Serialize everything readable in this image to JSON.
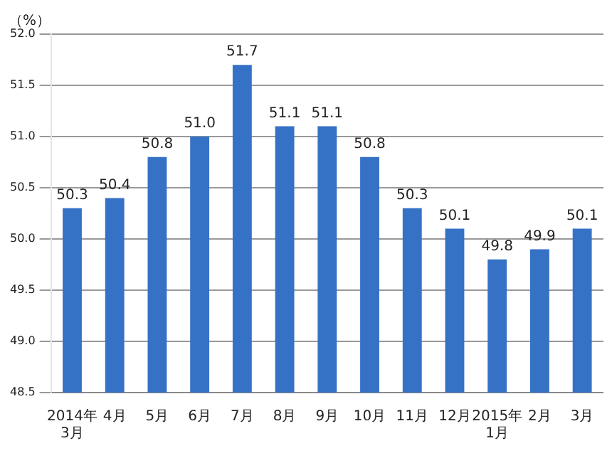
{
  "chart_data": {
    "type": "bar",
    "ylabel": "（%）",
    "categories": [
      "2014年\n3月",
      "4月",
      "5月",
      "6月",
      "7月",
      "8月",
      "9月",
      "10月",
      "11月",
      "12月",
      "2015年\n1月",
      "2月",
      "3月"
    ],
    "values": [
      50.3,
      50.4,
      50.8,
      51.0,
      51.7,
      51.1,
      51.1,
      50.8,
      50.3,
      50.1,
      49.8,
      49.9,
      50.1
    ],
    "value_labels": [
      "50.3",
      "50.4",
      "50.8",
      "51.0",
      "51.7",
      "51.1",
      "51.1",
      "50.8",
      "50.3",
      "50.1",
      "49.8",
      "49.9",
      "50.1"
    ],
    "color": "#3572c6",
    "ylim": [
      48.5,
      52.0
    ],
    "yticks": [
      {
        "value": 48.5,
        "label": "48.5"
      },
      {
        "value": 49,
        "label": "49.0"
      },
      {
        "value": 49.5,
        "label": "49.5"
      },
      {
        "value": 50,
        "label": "50.0"
      },
      {
        "value": 50.5,
        "label": "50.5"
      },
      {
        "value": 51,
        "label": "51.0"
      },
      {
        "value": 51.5,
        "label": "51.5"
      },
      {
        "value": 52,
        "label": "52.0"
      }
    ],
    "grid": "y",
    "legend": false
  }
}
